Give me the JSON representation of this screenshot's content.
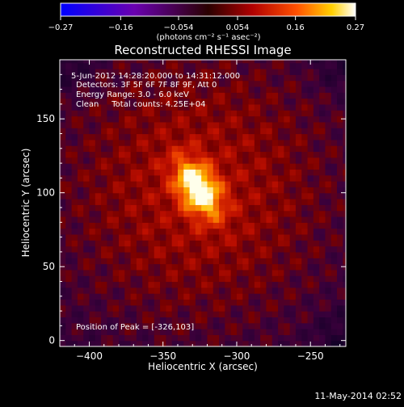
{
  "chart_data": {
    "type": "heatmap",
    "title": "Reconstructed RHESSI Image",
    "xlabel": "Heliocentric X (arcsec)",
    "ylabel": "Heliocentric Y (arcsec)",
    "xlim": [
      -420,
      -226
    ],
    "ylim": [
      -4,
      190
    ],
    "xticks": [
      -400,
      -350,
      -300,
      -250
    ],
    "yticks": [
      0,
      50,
      100,
      150
    ],
    "colorbar": {
      "ticks": [
        -0.27,
        -0.16,
        -0.054,
        0.054,
        0.16,
        0.27
      ],
      "tick_labels": [
        "-0.27",
        "-0.16",
        "-0.054",
        "0.054",
        "0.16",
        "0.27"
      ],
      "unit_label": "(photons cm⁻² s⁻¹ asec⁻²)",
      "colormap": "blue-purple-red-yellow-white"
    },
    "annotations": [
      "5-Jun-2012 14:28:20.000 to 14:31:12.000",
      "Detectors: 3F 5F 6F 7F 8F 9F, Att 0",
      "Energy Range: 3.0 - 6.0 keV",
      "Clean     Total counts: 4.25E+04"
    ],
    "peak": {
      "x": -326,
      "y": 103,
      "label": "Position of Peak = [-326,103]"
    },
    "source": {
      "x": -326,
      "y": 103,
      "peak_value": 0.27
    }
  },
  "footer": {
    "timestamp": "11-May-2014 02:52"
  }
}
